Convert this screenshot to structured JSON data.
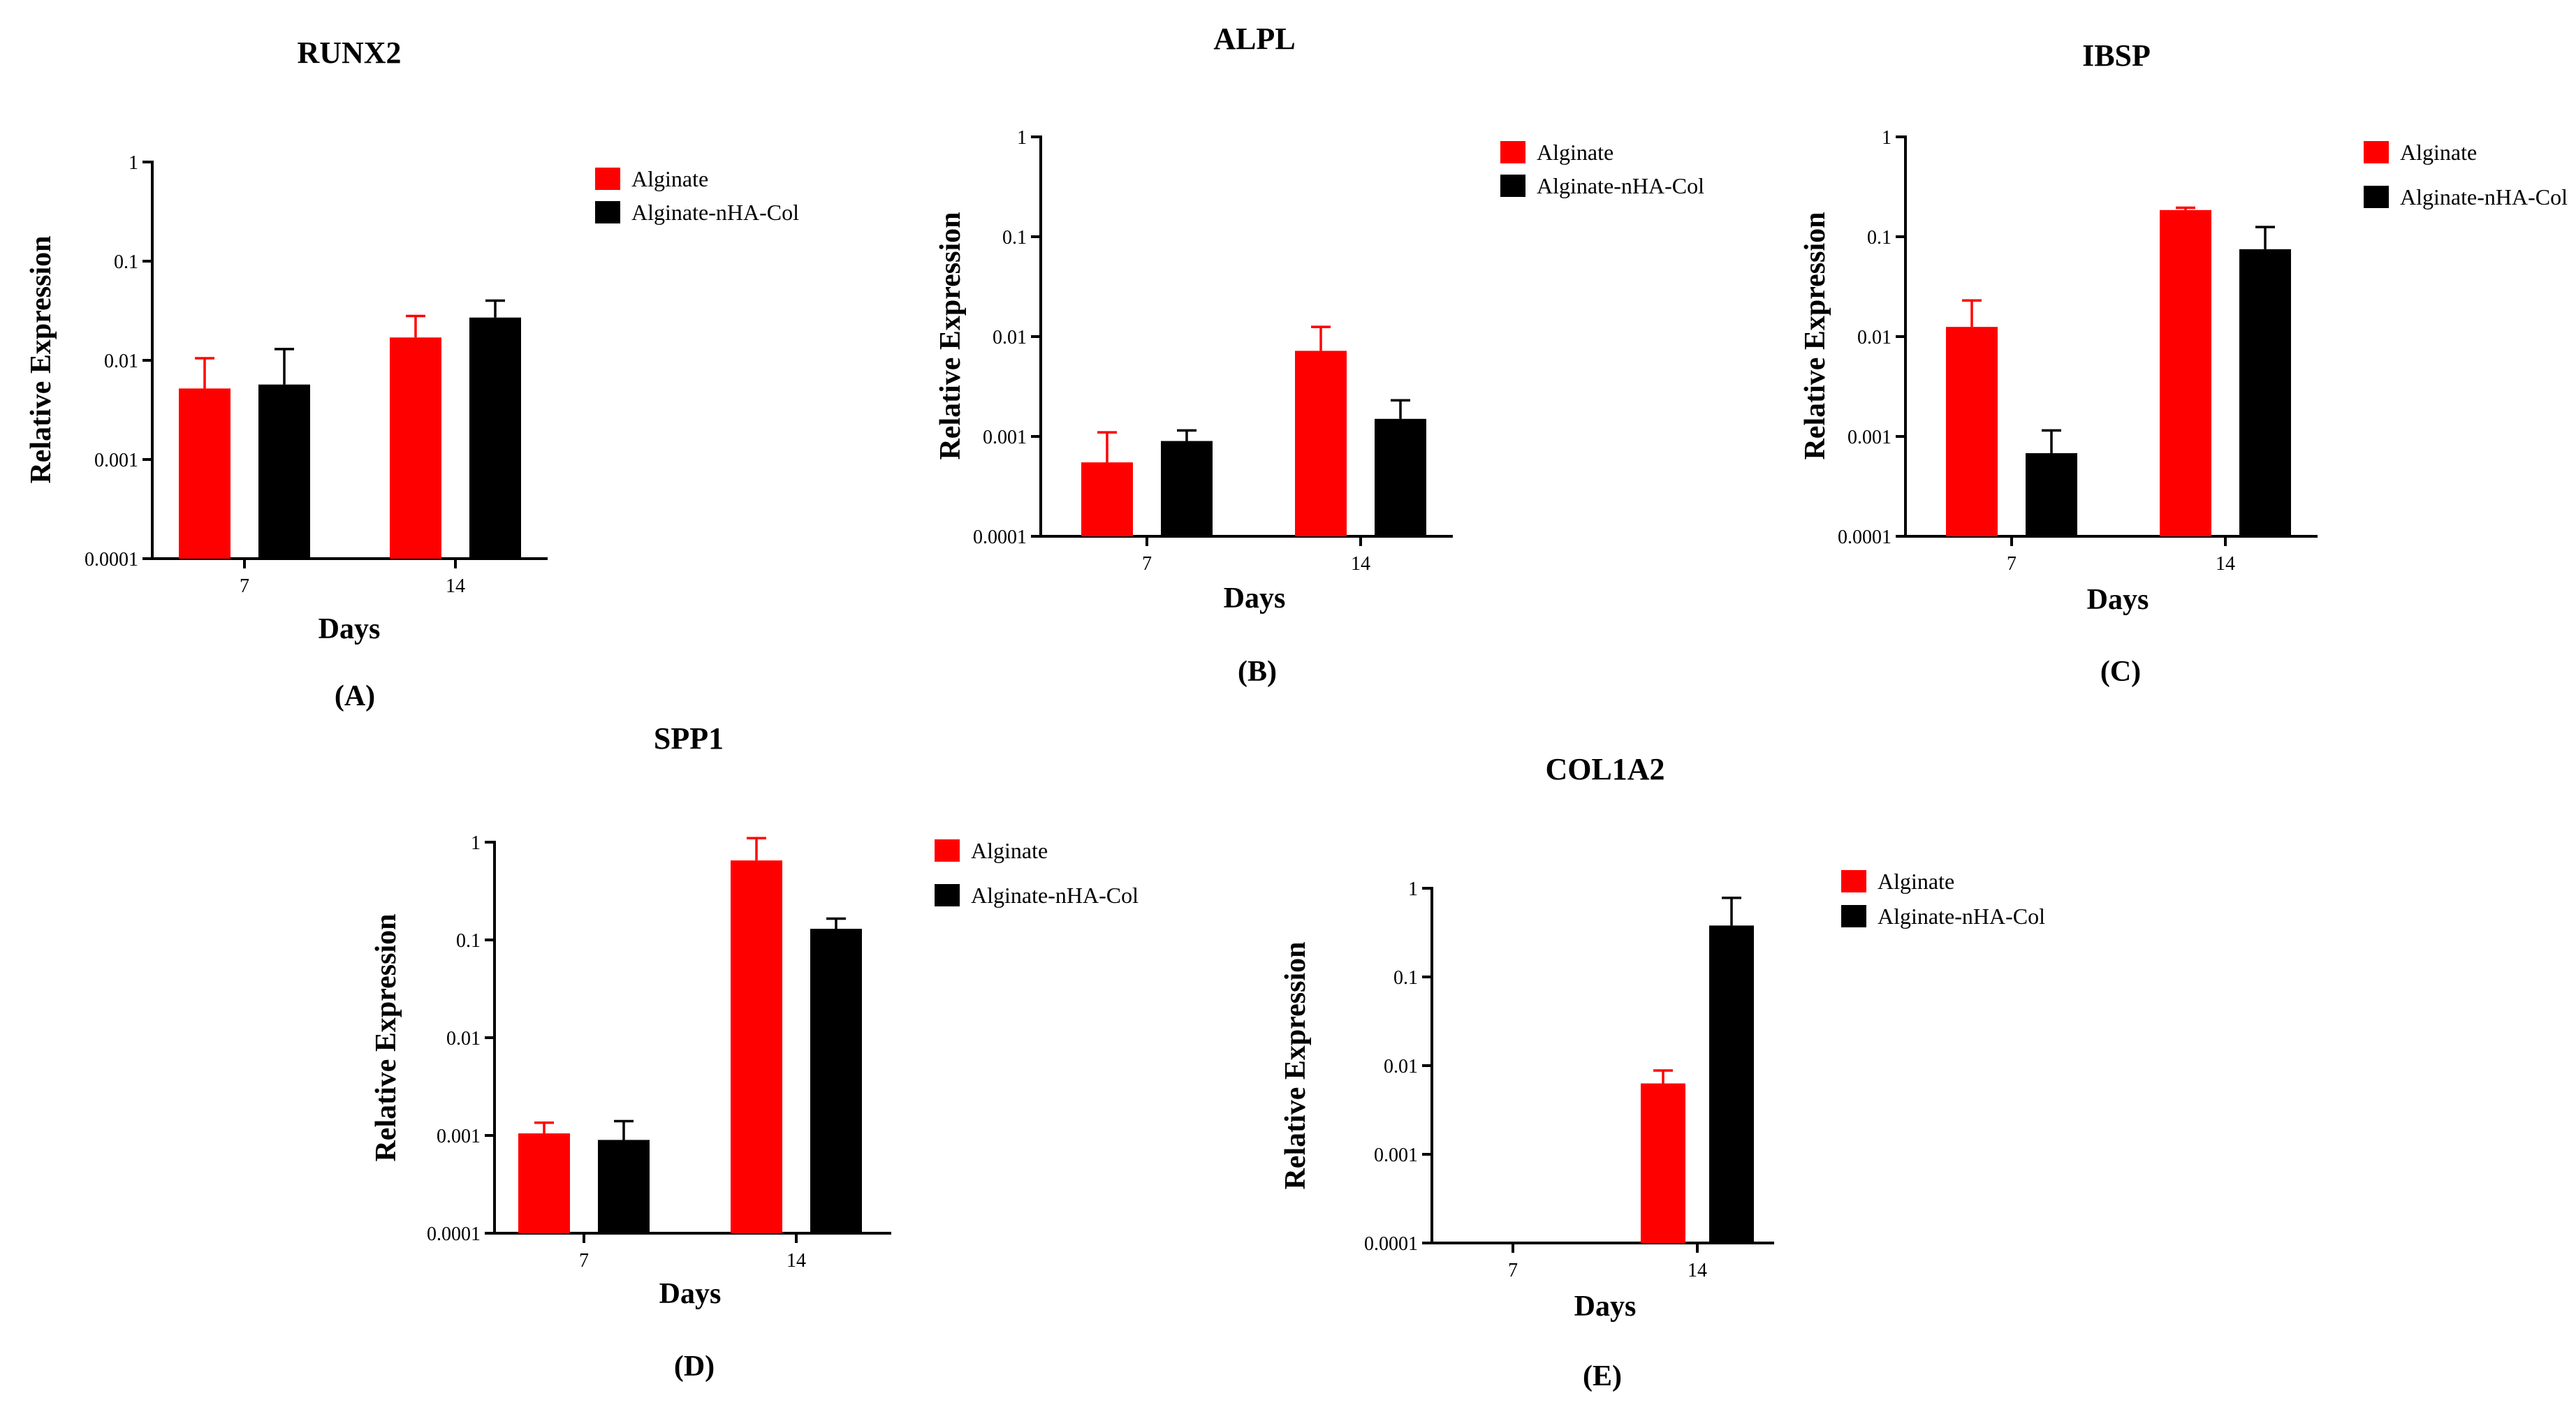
{
  "colors": {
    "alginate": "#ff0000",
    "composite": "#000000"
  },
  "chart_data": [
    {
      "type": "bar",
      "title": "RUNX2",
      "panel_label": "(A)",
      "xlabel": "Days",
      "ylabel": "Relative Expression",
      "yscale": "log",
      "ylim": [
        0.0001,
        1
      ],
      "yticks": [
        "0.0001",
        "0.001",
        "0.01",
        "0.1",
        "1"
      ],
      "categories": [
        "7",
        "14"
      ],
      "legend_position": "top-right",
      "series": [
        {
          "name": "Alginate",
          "values": [
            0.0052,
            0.017
          ],
          "errors": [
            0.0105,
            0.028
          ]
        },
        {
          "name": "Alginate-nHA-Col",
          "values": [
            0.0057,
            0.027
          ],
          "errors": [
            0.013,
            0.04
          ]
        }
      ]
    },
    {
      "type": "bar",
      "title": "ALPL",
      "panel_label": "(B)",
      "xlabel": "Days",
      "ylabel": "Relative Expression",
      "yscale": "log",
      "ylim": [
        0.0001,
        1
      ],
      "yticks": [
        "0.0001",
        "0.001",
        "0.01",
        "0.1",
        "1"
      ],
      "categories": [
        "7",
        "14"
      ],
      "legend_position": "top-right",
      "series": [
        {
          "name": "Alginate",
          "values": [
            0.00055,
            0.0072
          ],
          "errors": [
            0.0011,
            0.0125
          ]
        },
        {
          "name": "Alginate-nHA-Col",
          "values": [
            0.0009,
            0.0015
          ],
          "errors": [
            0.00115,
            0.0023
          ]
        }
      ]
    },
    {
      "type": "bar",
      "title": "IBSP",
      "panel_label": "(C)",
      "xlabel": "Days",
      "ylabel": "Relative Expression",
      "yscale": "log",
      "ylim": [
        0.0001,
        1
      ],
      "yticks": [
        "0.0001",
        "0.001",
        "0.01",
        "0.1",
        "1"
      ],
      "categories": [
        "7",
        "14"
      ],
      "legend_position": "top-right",
      "series": [
        {
          "name": "Alginate",
          "values": [
            0.0125,
            0.185
          ],
          "errors": [
            0.023,
            0.195
          ]
        },
        {
          "name": "Alginate-nHA-Col",
          "values": [
            0.00068,
            0.075
          ],
          "errors": [
            0.00115,
            0.125
          ]
        }
      ]
    },
    {
      "type": "bar",
      "title": "SPP1",
      "panel_label": "(D)",
      "xlabel": "Days",
      "ylabel": "Relative Expression",
      "yscale": "log",
      "ylim": [
        0.0001,
        1
      ],
      "yticks": [
        "0.0001",
        "0.001",
        "0.01",
        "0.1",
        "1"
      ],
      "categories": [
        "7",
        "14"
      ],
      "legend_position": "top-right",
      "series": [
        {
          "name": "Alginate",
          "values": [
            0.00105,
            0.65
          ],
          "errors": [
            0.00135,
            1.1
          ]
        },
        {
          "name": "Alginate-nHA-Col",
          "values": [
            0.0009,
            0.13
          ],
          "errors": [
            0.0014,
            0.165
          ]
        }
      ]
    },
    {
      "type": "bar",
      "title": "COL1A2",
      "panel_label": "(E)",
      "xlabel": "Days",
      "ylabel": "Relative Expression",
      "yscale": "log",
      "ylim": [
        0.0001,
        1
      ],
      "yticks": [
        "0.0001",
        "0.001",
        "0.01",
        "0.1",
        "1"
      ],
      "categories": [
        "7",
        "14"
      ],
      "legend_position": "top-right",
      "series": [
        {
          "name": "Alginate",
          "values": [
            null,
            0.0063
          ],
          "errors": [
            null,
            0.0088
          ]
        },
        {
          "name": "Alginate-nHA-Col",
          "values": [
            null,
            0.38
          ],
          "errors": [
            null,
            0.78
          ]
        }
      ]
    }
  ]
}
